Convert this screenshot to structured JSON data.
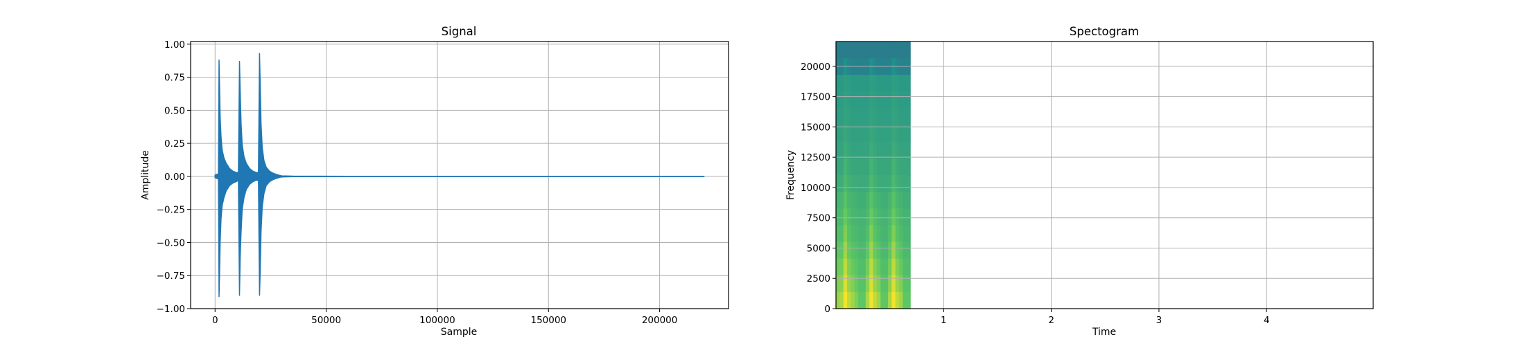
{
  "chart_data": [
    {
      "type": "line",
      "title": "Signal",
      "xlabel": "Sample",
      "ylabel": "Amplitude",
      "xlim": [
        -11000,
        231000
      ],
      "ylim": [
        -1.0,
        1.02
      ],
      "grid": true,
      "color": "#1f77b4",
      "x_ticks": [
        0,
        50000,
        100000,
        150000,
        200000
      ],
      "x_tick_labels": [
        "0",
        "50000",
        "100000",
        "150000",
        "200000"
      ],
      "y_ticks": [
        -1.0,
        -0.75,
        -0.5,
        -0.25,
        0.0,
        0.25,
        0.5,
        0.75,
        1.0
      ],
      "y_tick_labels": [
        "−1.00",
        "−0.75",
        "−0.50",
        "−0.25",
        "0.00",
        "0.25",
        "0.50",
        "0.75",
        "1.00"
      ],
      "series": [
        {
          "x": [
            0,
            1500,
            1800,
            2000,
            2300,
            2700,
            3200,
            4000,
            5000,
            6500,
            8000,
            9500,
            10500,
            11000,
            11300,
            11700,
            12200,
            13000,
            14000,
            15500,
            17000,
            18500,
            19500,
            20000,
            20300,
            20700,
            21200,
            22000,
            23000,
            24500,
            26000,
            27500,
            29000,
            30000,
            35000,
            60000,
            100000,
            150000,
            200000,
            220000
          ],
          "upper": [
            0.01,
            0.02,
            0.88,
            0.7,
            0.45,
            0.3,
            0.2,
            0.14,
            0.1,
            0.06,
            0.04,
            0.03,
            0.03,
            0.87,
            0.65,
            0.4,
            0.24,
            0.15,
            0.1,
            0.06,
            0.04,
            0.03,
            0.03,
            0.93,
            0.7,
            0.4,
            0.22,
            0.12,
            0.07,
            0.04,
            0.025,
            0.015,
            0.008,
            0.004,
            0.002,
            0.001,
            0.001,
            0.001,
            0.001,
            0.001
          ],
          "lower": [
            -0.01,
            -0.02,
            -0.91,
            -0.75,
            -0.5,
            -0.32,
            -0.22,
            -0.16,
            -0.11,
            -0.07,
            -0.05,
            -0.04,
            -0.03,
            -0.9,
            -0.62,
            -0.42,
            -0.25,
            -0.16,
            -0.1,
            -0.06,
            -0.04,
            -0.03,
            -0.03,
            -0.9,
            -0.72,
            -0.42,
            -0.23,
            -0.13,
            -0.07,
            -0.04,
            -0.025,
            -0.015,
            -0.008,
            -0.004,
            -0.002,
            -0.001,
            -0.001,
            -0.001,
            -0.001,
            -0.001
          ]
        }
      ]
    },
    {
      "type": "heatmap",
      "title": "Spectogram",
      "xlabel": "Time",
      "ylabel": "Frequency",
      "xlim": [
        0,
        4.99
      ],
      "ylim": [
        0,
        22050
      ],
      "grid": true,
      "data_extent_x": [
        0,
        0.69
      ],
      "x_ticks": [
        1,
        2,
        3,
        4
      ],
      "x_tick_labels": [
        "1",
        "2",
        "3",
        "4"
      ],
      "y_ticks": [
        0,
        2500,
        5000,
        7500,
        10000,
        12500,
        15000,
        17500,
        20000
      ],
      "y_tick_labels": [
        "0",
        "2500",
        "5000",
        "7500",
        "10000",
        "12500",
        "15000",
        "17500",
        "20000"
      ],
      "colormap": [
        "#440154",
        "#3b528b",
        "#21918c",
        "#5ec962",
        "#fde725"
      ],
      "cmap_range": [
        0,
        1
      ],
      "z": [
        [
          0.42,
          0.42,
          0.42,
          0.42,
          0.42,
          0.42,
          0.42,
          0.42,
          0.42,
          0.42,
          0.42,
          0.42,
          0.42,
          0.42,
          0.42,
          0.42,
          0.42,
          0.42,
          0.42,
          0.42
        ],
        [
          0.44,
          0.44,
          0.5,
          0.46,
          0.44,
          0.44,
          0.44,
          0.44,
          0.44,
          0.5,
          0.46,
          0.44,
          0.44,
          0.44,
          0.44,
          0.5,
          0.46,
          0.44,
          0.44,
          0.44
        ],
        [
          0.54,
          0.54,
          0.56,
          0.55,
          0.54,
          0.54,
          0.54,
          0.54,
          0.54,
          0.56,
          0.55,
          0.54,
          0.54,
          0.54,
          0.54,
          0.56,
          0.55,
          0.54,
          0.54,
          0.54
        ],
        [
          0.55,
          0.55,
          0.57,
          0.56,
          0.55,
          0.55,
          0.55,
          0.55,
          0.55,
          0.57,
          0.56,
          0.55,
          0.55,
          0.55,
          0.55,
          0.57,
          0.56,
          0.55,
          0.55,
          0.55
        ],
        [
          0.56,
          0.56,
          0.58,
          0.57,
          0.56,
          0.56,
          0.56,
          0.56,
          0.56,
          0.58,
          0.57,
          0.56,
          0.56,
          0.56,
          0.56,
          0.58,
          0.57,
          0.56,
          0.56,
          0.56
        ],
        [
          0.57,
          0.57,
          0.6,
          0.58,
          0.57,
          0.57,
          0.57,
          0.57,
          0.57,
          0.6,
          0.58,
          0.57,
          0.57,
          0.57,
          0.57,
          0.6,
          0.58,
          0.57,
          0.57,
          0.57
        ],
        [
          0.58,
          0.58,
          0.62,
          0.6,
          0.58,
          0.58,
          0.58,
          0.58,
          0.58,
          0.62,
          0.6,
          0.58,
          0.58,
          0.58,
          0.58,
          0.62,
          0.6,
          0.58,
          0.58,
          0.58
        ],
        [
          0.6,
          0.6,
          0.65,
          0.62,
          0.6,
          0.6,
          0.6,
          0.6,
          0.6,
          0.65,
          0.62,
          0.6,
          0.6,
          0.6,
          0.6,
          0.65,
          0.62,
          0.6,
          0.6,
          0.6
        ],
        [
          0.62,
          0.62,
          0.68,
          0.64,
          0.62,
          0.62,
          0.61,
          0.61,
          0.62,
          0.68,
          0.64,
          0.62,
          0.61,
          0.61,
          0.62,
          0.68,
          0.64,
          0.62,
          0.61,
          0.61
        ],
        [
          0.65,
          0.66,
          0.72,
          0.67,
          0.65,
          0.64,
          0.63,
          0.63,
          0.66,
          0.72,
          0.67,
          0.65,
          0.63,
          0.63,
          0.66,
          0.72,
          0.67,
          0.65,
          0.63,
          0.63
        ],
        [
          0.68,
          0.68,
          0.76,
          0.7,
          0.67,
          0.66,
          0.65,
          0.65,
          0.68,
          0.76,
          0.7,
          0.67,
          0.65,
          0.65,
          0.68,
          0.76,
          0.7,
          0.67,
          0.65,
          0.65
        ],
        [
          0.7,
          0.7,
          0.8,
          0.72,
          0.69,
          0.68,
          0.66,
          0.66,
          0.7,
          0.8,
          0.72,
          0.69,
          0.66,
          0.66,
          0.7,
          0.8,
          0.72,
          0.69,
          0.66,
          0.66
        ],
        [
          0.73,
          0.74,
          0.85,
          0.76,
          0.72,
          0.7,
          0.68,
          0.68,
          0.74,
          0.85,
          0.76,
          0.72,
          0.68,
          0.68,
          0.74,
          0.85,
          0.76,
          0.72,
          0.68,
          0.68
        ],
        [
          0.77,
          0.78,
          0.9,
          0.8,
          0.76,
          0.73,
          0.7,
          0.7,
          0.78,
          0.9,
          0.8,
          0.76,
          0.7,
          0.7,
          0.78,
          0.9,
          0.8,
          0.76,
          0.7,
          0.7
        ],
        [
          0.8,
          0.82,
          0.94,
          0.84,
          0.8,
          0.76,
          0.72,
          0.72,
          0.82,
          0.94,
          0.84,
          0.8,
          0.72,
          0.72,
          0.82,
          0.94,
          0.84,
          0.8,
          0.72,
          0.72
        ],
        [
          0.84,
          0.87,
          0.98,
          0.9,
          0.85,
          0.8,
          0.74,
          0.74,
          0.87,
          0.98,
          0.9,
          0.85,
          0.74,
          0.74,
          0.87,
          0.98,
          0.9,
          0.85,
          0.74,
          0.74
        ]
      ]
    }
  ]
}
